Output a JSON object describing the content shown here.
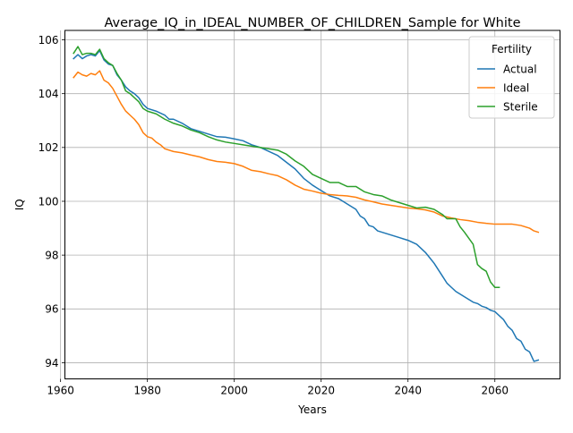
{
  "chart_data": {
    "type": "line",
    "title": "Average_IQ_in_IDEAL_NUMBER_OF_CHILDREN_Sample for White",
    "xlabel": "Years",
    "ylabel": "IQ",
    "xlim": [
      1961,
      2075
    ],
    "ylim": [
      93.4,
      106.35
    ],
    "xticks": [
      1960,
      1980,
      2000,
      2020,
      2040,
      2060
    ],
    "yticks": [
      94,
      96,
      98,
      100,
      102,
      104,
      106
    ],
    "grid": true,
    "legend": {
      "title": "Fertility",
      "placement": "top-right"
    },
    "series": [
      {
        "name": "Actual",
        "color": "#1f77b4",
        "points": [
          [
            1963,
            105.3
          ],
          [
            1964,
            105.45
          ],
          [
            1965,
            105.3
          ],
          [
            1966,
            105.4
          ],
          [
            1967,
            105.45
          ],
          [
            1968,
            105.4
          ],
          [
            1969,
            105.6
          ],
          [
            1970,
            105.25
          ],
          [
            1971,
            105.1
          ],
          [
            1972,
            105.05
          ],
          [
            1973,
            104.7
          ],
          [
            1974,
            104.5
          ],
          [
            1975,
            104.25
          ],
          [
            1976,
            104.1
          ],
          [
            1977,
            104.0
          ],
          [
            1978,
            103.85
          ],
          [
            1979,
            103.6
          ],
          [
            1980,
            103.45
          ],
          [
            1982,
            103.35
          ],
          [
            1984,
            103.2
          ],
          [
            1985,
            103.05
          ],
          [
            1986,
            103.05
          ],
          [
            1988,
            102.9
          ],
          [
            1990,
            102.7
          ],
          [
            1992,
            102.6
          ],
          [
            1994,
            102.5
          ],
          [
            1996,
            102.4
          ],
          [
            1998,
            102.38
          ],
          [
            2000,
            102.32
          ],
          [
            2002,
            102.25
          ],
          [
            2004,
            102.1
          ],
          [
            2006,
            102.0
          ],
          [
            2008,
            101.85
          ],
          [
            2010,
            101.7
          ],
          [
            2012,
            101.45
          ],
          [
            2014,
            101.2
          ],
          [
            2016,
            100.85
          ],
          [
            2018,
            100.6
          ],
          [
            2019,
            100.5
          ],
          [
            2020,
            100.4
          ],
          [
            2022,
            100.2
          ],
          [
            2024,
            100.1
          ],
          [
            2026,
            99.9
          ],
          [
            2028,
            99.7
          ],
          [
            2029,
            99.45
          ],
          [
            2030,
            99.35
          ],
          [
            2031,
            99.1
          ],
          [
            2032,
            99.05
          ],
          [
            2033,
            98.9
          ],
          [
            2035,
            98.8
          ],
          [
            2036,
            98.75
          ],
          [
            2037,
            98.7
          ],
          [
            2038,
            98.65
          ],
          [
            2039,
            98.6
          ],
          [
            2040,
            98.55
          ],
          [
            2042,
            98.4
          ],
          [
            2044,
            98.1
          ],
          [
            2045,
            97.9
          ],
          [
            2046,
            97.7
          ],
          [
            2047,
            97.45
          ],
          [
            2048,
            97.2
          ],
          [
            2049,
            96.95
          ],
          [
            2050,
            96.8
          ],
          [
            2051,
            96.65
          ],
          [
            2052,
            96.55
          ],
          [
            2053,
            96.45
          ],
          [
            2054,
            96.35
          ],
          [
            2055,
            96.25
          ],
          [
            2056,
            96.2
          ],
          [
            2057,
            96.1
          ],
          [
            2058,
            96.05
          ],
          [
            2059,
            95.95
          ],
          [
            2060,
            95.9
          ],
          [
            2061,
            95.75
          ],
          [
            2062,
            95.6
          ],
          [
            2063,
            95.35
          ],
          [
            2064,
            95.2
          ],
          [
            2065,
            94.9
          ],
          [
            2066,
            94.8
          ],
          [
            2067,
            94.5
          ],
          [
            2068,
            94.4
          ],
          [
            2069,
            94.05
          ],
          [
            2070,
            94.1
          ]
        ]
      },
      {
        "name": "Ideal",
        "color": "#ff7f0e",
        "points": [
          [
            1963,
            104.6
          ],
          [
            1964,
            104.8
          ],
          [
            1965,
            104.7
          ],
          [
            1966,
            104.65
          ],
          [
            1967,
            104.75
          ],
          [
            1968,
            104.7
          ],
          [
            1969,
            104.85
          ],
          [
            1970,
            104.5
          ],
          [
            1971,
            104.4
          ],
          [
            1972,
            104.2
          ],
          [
            1973,
            103.9
          ],
          [
            1974,
            103.6
          ],
          [
            1975,
            103.35
          ],
          [
            1976,
            103.2
          ],
          [
            1977,
            103.05
          ],
          [
            1978,
            102.85
          ],
          [
            1979,
            102.55
          ],
          [
            1980,
            102.4
          ],
          [
            1981,
            102.35
          ],
          [
            1982,
            102.2
          ],
          [
            1983,
            102.1
          ],
          [
            1984,
            101.95
          ],
          [
            1986,
            101.85
          ],
          [
            1988,
            101.8
          ],
          [
            1990,
            101.72
          ],
          [
            1992,
            101.65
          ],
          [
            1994,
            101.55
          ],
          [
            1996,
            101.48
          ],
          [
            1998,
            101.45
          ],
          [
            2000,
            101.4
          ],
          [
            2002,
            101.3
          ],
          [
            2004,
            101.15
          ],
          [
            2006,
            101.1
          ],
          [
            2008,
            101.02
          ],
          [
            2010,
            100.95
          ],
          [
            2012,
            100.8
          ],
          [
            2014,
            100.6
          ],
          [
            2016,
            100.45
          ],
          [
            2018,
            100.38
          ],
          [
            2020,
            100.3
          ],
          [
            2022,
            100.25
          ],
          [
            2024,
            100.22
          ],
          [
            2026,
            100.2
          ],
          [
            2028,
            100.15
          ],
          [
            2030,
            100.05
          ],
          [
            2032,
            99.98
          ],
          [
            2034,
            99.9
          ],
          [
            2036,
            99.85
          ],
          [
            2038,
            99.8
          ],
          [
            2040,
            99.75
          ],
          [
            2042,
            99.72
          ],
          [
            2044,
            99.68
          ],
          [
            2046,
            99.6
          ],
          [
            2048,
            99.45
          ],
          [
            2050,
            99.38
          ],
          [
            2052,
            99.32
          ],
          [
            2054,
            99.28
          ],
          [
            2056,
            99.22
          ],
          [
            2058,
            99.18
          ],
          [
            2060,
            99.15
          ],
          [
            2062,
            99.15
          ],
          [
            2064,
            99.15
          ],
          [
            2066,
            99.1
          ],
          [
            2068,
            99.0
          ],
          [
            2069,
            98.9
          ],
          [
            2070,
            98.85
          ]
        ]
      },
      {
        "name": "Sterile",
        "color": "#2ca02c",
        "points": [
          [
            1963,
            105.5
          ],
          [
            1964,
            105.75
          ],
          [
            1965,
            105.45
          ],
          [
            1966,
            105.5
          ],
          [
            1967,
            105.5
          ],
          [
            1968,
            105.45
          ],
          [
            1969,
            105.65
          ],
          [
            1970,
            105.3
          ],
          [
            1971,
            105.15
          ],
          [
            1972,
            105.05
          ],
          [
            1973,
            104.75
          ],
          [
            1974,
            104.5
          ],
          [
            1975,
            104.1
          ],
          [
            1976,
            104.0
          ],
          [
            1977,
            103.85
          ],
          [
            1978,
            103.7
          ],
          [
            1979,
            103.45
          ],
          [
            1980,
            103.35
          ],
          [
            1982,
            103.25
          ],
          [
            1984,
            103.05
          ],
          [
            1986,
            102.9
          ],
          [
            1988,
            102.8
          ],
          [
            1990,
            102.65
          ],
          [
            1992,
            102.55
          ],
          [
            1994,
            102.4
          ],
          [
            1996,
            102.28
          ],
          [
            1998,
            102.2
          ],
          [
            2000,
            102.15
          ],
          [
            2002,
            102.1
          ],
          [
            2004,
            102.05
          ],
          [
            2006,
            102.0
          ],
          [
            2008,
            101.95
          ],
          [
            2010,
            101.9
          ],
          [
            2012,
            101.75
          ],
          [
            2014,
            101.5
          ],
          [
            2016,
            101.3
          ],
          [
            2018,
            101.0
          ],
          [
            2020,
            100.85
          ],
          [
            2022,
            100.7
          ],
          [
            2024,
            100.7
          ],
          [
            2026,
            100.55
          ],
          [
            2028,
            100.55
          ],
          [
            2030,
            100.35
          ],
          [
            2032,
            100.25
          ],
          [
            2034,
            100.2
          ],
          [
            2036,
            100.05
          ],
          [
            2038,
            99.95
          ],
          [
            2040,
            99.85
          ],
          [
            2042,
            99.75
          ],
          [
            2044,
            99.78
          ],
          [
            2046,
            99.7
          ],
          [
            2048,
            99.5
          ],
          [
            2049,
            99.35
          ],
          [
            2051,
            99.35
          ],
          [
            2052,
            99.05
          ],
          [
            2053,
            98.85
          ],
          [
            2055,
            98.4
          ],
          [
            2056,
            97.65
          ],
          [
            2057,
            97.5
          ],
          [
            2058,
            97.4
          ],
          [
            2059,
            97.0
          ],
          [
            2060,
            96.8
          ],
          [
            2061,
            96.8
          ]
        ]
      }
    ]
  }
}
